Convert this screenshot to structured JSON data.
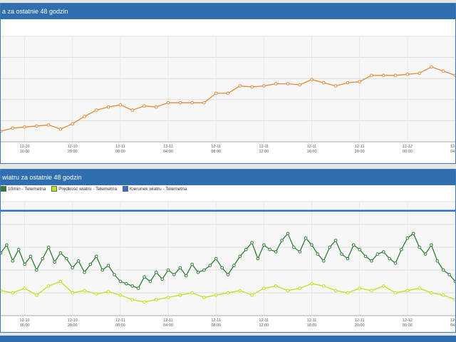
{
  "panel1": {
    "title": "a za ostatnie 48 godzin"
  },
  "panel2": {
    "title": "wiatru za ostatnie 48 godzin",
    "legend": [
      {
        "label": "10min - Telemetria",
        "color": "#2e7d32"
      },
      {
        "label": "Prędkość wiatru - Telemetria",
        "color": "#b5e61d"
      },
      {
        "label": "Kierunek wiatru - Telemetria",
        "color": "#2f6fd0"
      }
    ]
  },
  "colors": {
    "header": "#2f6fb0",
    "series_orange": "#e08a3c",
    "series_dark_green": "#2e7d32",
    "series_light_green": "#b5e61d",
    "series_blue": "#2f6fd0"
  },
  "chart_data": [
    {
      "type": "line",
      "title": "a za ostatnie 48 godzin",
      "x_ticks": [
        {
          "day": "12-10",
          "time": "16:00"
        },
        {
          "day": "12-10",
          "time": "20:00"
        },
        {
          "day": "12-11",
          "time": "00:00"
        },
        {
          "day": "12-11",
          "time": "04:00"
        },
        {
          "day": "12-11",
          "time": "08:00"
        },
        {
          "day": "12-11",
          "time": "12:00"
        },
        {
          "day": "12-11",
          "time": "16:00"
        },
        {
          "day": "12-11",
          "time": "20:00"
        },
        {
          "day": "12-12",
          "time": "00:00"
        },
        {
          "day": "12-12",
          "time": "04:00"
        }
      ],
      "x_range_hours": [
        14,
        52
      ],
      "ylim": [
        0,
        100
      ],
      "grid": true,
      "series": [
        {
          "color": "#e08a3c",
          "x": [
            14,
            15,
            16,
            17,
            18,
            19,
            20,
            21,
            22,
            23,
            24,
            25,
            26,
            27,
            28,
            29,
            30,
            31,
            32,
            33,
            34,
            35,
            36,
            37,
            38,
            39,
            40,
            41,
            42,
            43,
            44,
            45,
            46,
            47,
            48,
            49,
            50,
            51,
            52
          ],
          "y": [
            10,
            13,
            14,
            15,
            16,
            12,
            17,
            24,
            30,
            33,
            35,
            30,
            34,
            33,
            37,
            37,
            37,
            37,
            46,
            46,
            53,
            52,
            53,
            55,
            55,
            54,
            59,
            56,
            53,
            56,
            57,
            63,
            63,
            63,
            64,
            65,
            71,
            67,
            63
          ]
        }
      ]
    },
    {
      "type": "line",
      "title": "wiatru za ostatnie 48 godzin",
      "x_ticks": [
        {
          "day": "12-10",
          "time": "16:00"
        },
        {
          "day": "12-10",
          "time": "20:00"
        },
        {
          "day": "12-11",
          "time": "00:00"
        },
        {
          "day": "12-11",
          "time": "04:00"
        },
        {
          "day": "12-11",
          "time": "08:00"
        },
        {
          "day": "12-11",
          "time": "12:00"
        },
        {
          "day": "12-11",
          "time": "16:00"
        },
        {
          "day": "12-11",
          "time": "20:00"
        },
        {
          "day": "12-12",
          "time": "00:00"
        },
        {
          "day": "12-12",
          "time": "04:00"
        }
      ],
      "x_range_hours": [
        14,
        52
      ],
      "ylim": [
        0,
        100
      ],
      "grid": true,
      "legend_position": "top-left",
      "series": [
        {
          "name": "10min - Telemetria",
          "color": "#2e7d32",
          "x": [
            14,
            14.5,
            15,
            15.5,
            16,
            16.5,
            17,
            17.5,
            18,
            18.5,
            19,
            19.5,
            20,
            20.5,
            21,
            21.5,
            22,
            22.5,
            23,
            23.5,
            24,
            24.5,
            25,
            25.5,
            26,
            26.5,
            27,
            27.5,
            28,
            28.5,
            29,
            29.5,
            30,
            30.5,
            31,
            31.5,
            32,
            32.5,
            33,
            33.5,
            34,
            34.5,
            35,
            35.5,
            36,
            36.5,
            37,
            37.5,
            38,
            38.5,
            39,
            39.5,
            40,
            40.5,
            41,
            41.5,
            42,
            42.5,
            43,
            43.5,
            44,
            44.5,
            45,
            45.5,
            46,
            46.5,
            47,
            47.5,
            48,
            48.5,
            49,
            49.5,
            50,
            50.5,
            51,
            51.5,
            52
          ],
          "y": [
            55,
            62,
            48,
            58,
            45,
            52,
            40,
            50,
            60,
            47,
            55,
            50,
            42,
            48,
            38,
            45,
            52,
            40,
            44,
            36,
            30,
            28,
            26,
            24,
            34,
            30,
            38,
            32,
            40,
            36,
            42,
            35,
            45,
            38,
            40,
            44,
            50,
            42,
            36,
            44,
            52,
            58,
            64,
            50,
            62,
            58,
            56,
            66,
            72,
            60,
            56,
            68,
            62,
            54,
            48,
            60,
            66,
            54,
            50,
            62,
            58,
            52,
            48,
            54,
            56,
            50,
            46,
            58,
            68,
            72,
            60,
            54,
            62,
            48,
            40,
            36,
            30
          ]
        },
        {
          "name": "Prędkość wiatru - Telemetria",
          "color": "#b5e61d",
          "x": [
            14,
            15,
            16,
            17,
            18,
            19,
            20,
            21,
            22,
            23,
            24,
            25,
            26,
            27,
            28,
            29,
            30,
            31,
            32,
            33,
            34,
            35,
            36,
            37,
            38,
            39,
            40,
            41,
            42,
            43,
            44,
            45,
            46,
            47,
            48,
            49,
            50,
            51,
            52
          ],
          "y": [
            22,
            20,
            24,
            18,
            26,
            30,
            20,
            22,
            19,
            21,
            18,
            14,
            12,
            14,
            16,
            18,
            20,
            16,
            18,
            20,
            22,
            18,
            24,
            26,
            22,
            24,
            28,
            26,
            22,
            20,
            24,
            22,
            26,
            20,
            22,
            24,
            20,
            18,
            14
          ]
        },
        {
          "name": "Kierunek wiatru - Telemetria",
          "color": "#2f6fd0",
          "x": [
            14,
            52
          ],
          "y": [
            92,
            92
          ]
        }
      ]
    }
  ]
}
